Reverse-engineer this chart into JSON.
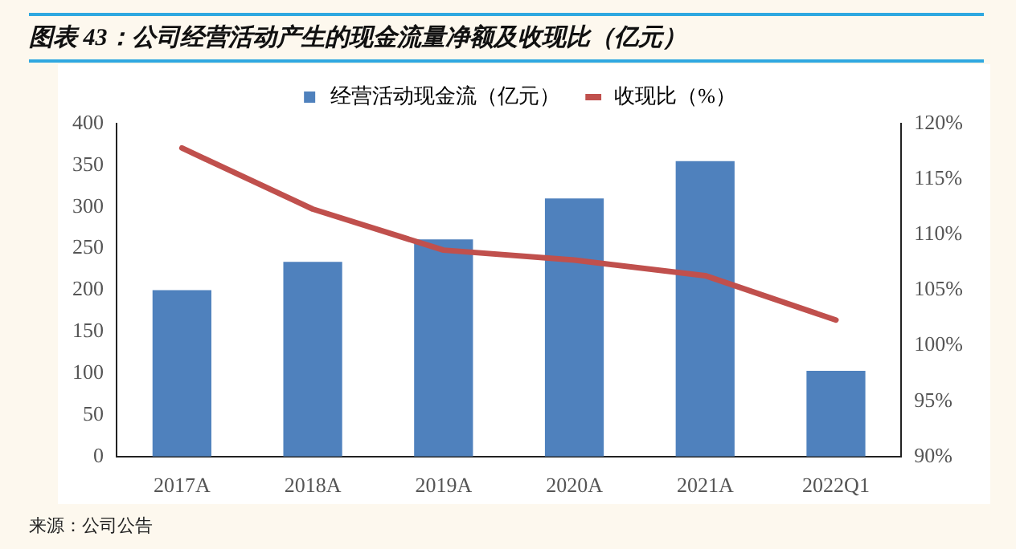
{
  "chart_data": {
    "type": "bar",
    "title": "图表 43：公司经营活动产生的现金流量净额及收现比（亿元）",
    "categories": [
      "2017A",
      "2018A",
      "2019A",
      "2020A",
      "2021A",
      "2022Q1"
    ],
    "series": [
      {
        "name": "经营活动现金流（亿元）",
        "color": "#4f81bd",
        "values": [
          200,
          234,
          261,
          310,
          355,
          103
        ]
      },
      {
        "name": "收现比（%）",
        "type": "line",
        "axis": "y2",
        "color": "#c0504d",
        "values": [
          117.8,
          112.3,
          108.6,
          107.7,
          106.3,
          102.3
        ]
      }
    ],
    "ylim": [
      0,
      400
    ],
    "yticks": [
      0,
      50,
      100,
      150,
      200,
      250,
      300,
      350,
      400
    ],
    "y2lim": [
      90,
      120
    ],
    "y2ticks": [
      {
        "value": 90,
        "label": "90%"
      },
      {
        "value": 95,
        "label": "95%"
      },
      {
        "value": 100,
        "label": "100%"
      },
      {
        "value": 105,
        "label": "105%"
      },
      {
        "value": 110,
        "label": "110%"
      },
      {
        "value": 115,
        "label": "115%"
      },
      {
        "value": 120,
        "label": "120%"
      }
    ],
    "legend": "top",
    "marker": "none",
    "annotations": [
      "来源：公司公告"
    ]
  }
}
